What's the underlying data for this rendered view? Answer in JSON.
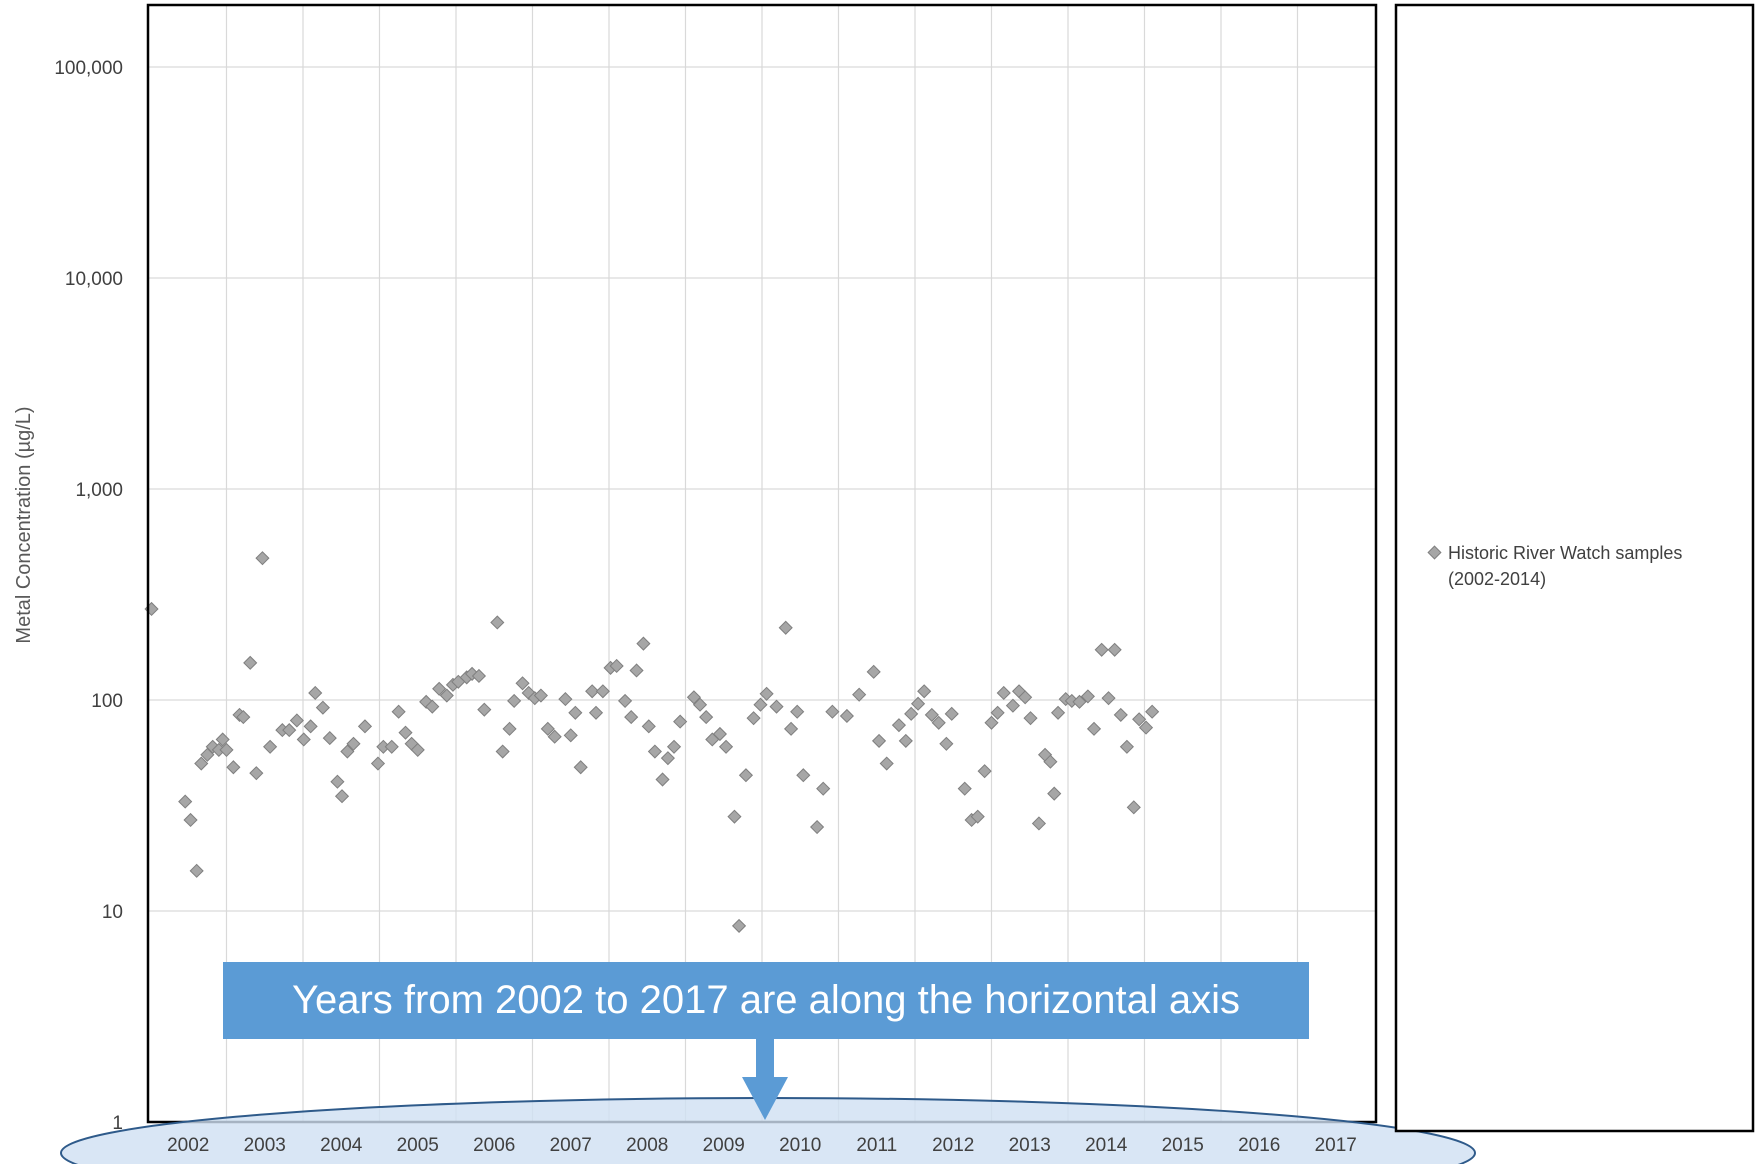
{
  "chart_data": {
    "type": "scatter",
    "ylabel": "Metal Concentration (µg/L)",
    "yscale": "log",
    "ylim": [
      1,
      100000
    ],
    "ytick_labels": [
      "1",
      "10",
      "100",
      "1,000",
      "10,000",
      "100,000"
    ],
    "xlim": [
      2001.5,
      2017.5
    ],
    "xtick_labels": [
      "2002",
      "2003",
      "2004",
      "2005",
      "2006",
      "2007",
      "2008",
      "2009",
      "2010",
      "2011",
      "2012",
      "2013",
      "2014",
      "2015",
      "2016",
      "2017"
    ],
    "grid": true,
    "legend_position": "right",
    "series": [
      {
        "name": "Historic River Watch samples (2002-2014)",
        "legend_lines": [
          "Historic River Watch samples",
          "(2002-2014)"
        ],
        "marker": "diamond",
        "color": "#a6a6a6",
        "points": [
          [
            2001.52,
            270
          ],
          [
            2001.96,
            33
          ],
          [
            2002.03,
            27
          ],
          [
            2002.11,
            15.5
          ],
          [
            2002.17,
            50
          ],
          [
            2002.25,
            55
          ],
          [
            2002.32,
            60
          ],
          [
            2002.4,
            58
          ],
          [
            2002.45,
            65
          ],
          [
            2002.5,
            58
          ],
          [
            2002.59,
            48
          ],
          [
            2002.67,
            85
          ],
          [
            2002.72,
            83
          ],
          [
            2002.81,
            150
          ],
          [
            2002.89,
            45
          ],
          [
            2002.97,
            470
          ],
          [
            2003.07,
            60
          ],
          [
            2003.23,
            72
          ],
          [
            2003.32,
            72
          ],
          [
            2003.42,
            80
          ],
          [
            2003.51,
            65
          ],
          [
            2003.6,
            75
          ],
          [
            2003.66,
            108
          ],
          [
            2003.76,
            92
          ],
          [
            2003.85,
            66
          ],
          [
            2003.95,
            41
          ],
          [
            2004.01,
            35
          ],
          [
            2004.08,
            57
          ],
          [
            2004.16,
            62
          ],
          [
            2004.31,
            75
          ],
          [
            2004.48,
            50
          ],
          [
            2004.55,
            60
          ],
          [
            2004.66,
            60
          ],
          [
            2004.75,
            88
          ],
          [
            2004.84,
            70
          ],
          [
            2004.92,
            62
          ],
          [
            2005.0,
            58
          ],
          [
            2005.11,
            98
          ],
          [
            2005.19,
            93
          ],
          [
            2005.28,
            113
          ],
          [
            2005.38,
            105
          ],
          [
            2005.46,
            118
          ],
          [
            2005.53,
            122
          ],
          [
            2005.64,
            128
          ],
          [
            2005.71,
            133
          ],
          [
            2005.8,
            130
          ],
          [
            2005.87,
            90
          ],
          [
            2006.04,
            233
          ],
          [
            2006.11,
            57
          ],
          [
            2006.2,
            73
          ],
          [
            2006.26,
            99
          ],
          [
            2006.37,
            120
          ],
          [
            2006.45,
            108
          ],
          [
            2006.53,
            102
          ],
          [
            2006.61,
            105
          ],
          [
            2006.7,
            73
          ],
          [
            2006.79,
            67
          ],
          [
            2006.93,
            101
          ],
          [
            2007.0,
            68
          ],
          [
            2007.06,
            87
          ],
          [
            2007.13,
            48
          ],
          [
            2007.28,
            110
          ],
          [
            2007.33,
            87
          ],
          [
            2007.42,
            110
          ],
          [
            2007.52,
            142
          ],
          [
            2007.6,
            145
          ],
          [
            2007.71,
            99
          ],
          [
            2007.79,
            83
          ],
          [
            2007.86,
            138
          ],
          [
            2007.95,
            185
          ],
          [
            2008.02,
            75
          ],
          [
            2008.1,
            57
          ],
          [
            2008.2,
            42
          ],
          [
            2008.27,
            53
          ],
          [
            2008.35,
            60
          ],
          [
            2008.43,
            79
          ],
          [
            2008.61,
            103
          ],
          [
            2008.69,
            95
          ],
          [
            2008.77,
            83
          ],
          [
            2008.85,
            65
          ],
          [
            2008.95,
            69
          ],
          [
            2009.03,
            60
          ],
          [
            2009.14,
            28
          ],
          [
            2009.2,
            8.5
          ],
          [
            2009.29,
            44
          ],
          [
            2009.39,
            82
          ],
          [
            2009.48,
            95
          ],
          [
            2009.56,
            107
          ],
          [
            2009.69,
            93
          ],
          [
            2009.81,
            220
          ],
          [
            2009.88,
            73
          ],
          [
            2009.96,
            88
          ],
          [
            2010.04,
            44
          ],
          [
            2010.22,
            25
          ],
          [
            2010.3,
            38
          ],
          [
            2010.42,
            88
          ],
          [
            2010.61,
            84
          ],
          [
            2010.77,
            106
          ],
          [
            2010.96,
            136
          ],
          [
            2011.03,
            64
          ],
          [
            2011.13,
            50
          ],
          [
            2011.29,
            76
          ],
          [
            2011.38,
            64
          ],
          [
            2011.45,
            86
          ],
          [
            2011.54,
            96
          ],
          [
            2011.62,
            110
          ],
          [
            2011.72,
            85
          ],
          [
            2011.81,
            78
          ],
          [
            2011.91,
            62
          ],
          [
            2011.98,
            86
          ],
          [
            2012.15,
            38
          ],
          [
            2012.24,
            27
          ],
          [
            2012.32,
            28
          ],
          [
            2012.41,
            46
          ],
          [
            2012.5,
            78
          ],
          [
            2012.58,
            87
          ],
          [
            2012.66,
            108
          ],
          [
            2012.78,
            94
          ],
          [
            2012.86,
            110
          ],
          [
            2012.94,
            103
          ],
          [
            2013.01,
            82
          ],
          [
            2013.12,
            26
          ],
          [
            2013.2,
            55
          ],
          [
            2013.27,
            51
          ],
          [
            2013.32,
            36
          ],
          [
            2013.37,
            87
          ],
          [
            2013.47,
            101
          ],
          [
            2013.55,
            99
          ],
          [
            2013.65,
            98
          ],
          [
            2013.76,
            104
          ],
          [
            2013.84,
            73
          ],
          [
            2013.94,
            173
          ],
          [
            2014.03,
            102
          ],
          [
            2014.11,
            173
          ],
          [
            2014.19,
            85
          ],
          [
            2014.27,
            60
          ],
          [
            2014.36,
            31
          ],
          [
            2014.43,
            81
          ],
          [
            2014.52,
            74
          ],
          [
            2014.6,
            88
          ]
        ]
      }
    ],
    "annotation": {
      "text": "Years from 2002 to 2017 are along the horizontal axis"
    }
  }
}
